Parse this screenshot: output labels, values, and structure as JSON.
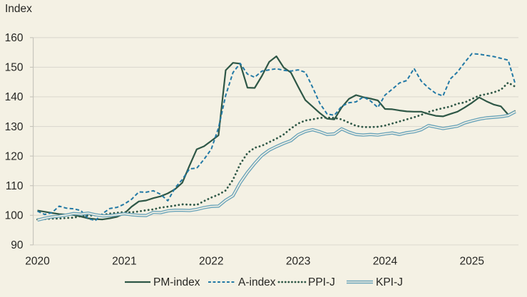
{
  "chart_data": {
    "type": "line",
    "title": "Index",
    "x_start": "2020-01",
    "x_end": "2025-07",
    "x_frequency": "monthly",
    "xtick_labels": [
      "2020",
      "2021",
      "2022",
      "2023",
      "2024",
      "2025"
    ],
    "ytick_labels": [
      "90",
      "100",
      "110",
      "120",
      "130",
      "140",
      "150",
      "160"
    ],
    "ylim": [
      90,
      160
    ],
    "grid": "horizontal",
    "legend_position": "bottom-center",
    "background_color": "#f4f1e4",
    "gridline_color": "#dcd9cf",
    "axis_color": "#c5c3ba",
    "text_color": "#262623",
    "series": [
      {
        "name": "PM-index",
        "style": "solid",
        "color": "#2e5746",
        "values": [
          101.6,
          101.2,
          100.8,
          100.4,
          100.3,
          100.1,
          99.6,
          99.0,
          98.7,
          98.6,
          99.0,
          99.5,
          100.6,
          102.9,
          104.7,
          105.0,
          105.8,
          106.4,
          107.4,
          108.8,
          111.0,
          116.8,
          122.3,
          123.3,
          125.1,
          127.0,
          149.0,
          151.5,
          151.2,
          143.1,
          143.0,
          147.1,
          151.8,
          153.7,
          149.9,
          148.2,
          143.4,
          138.9,
          136.7,
          134.5,
          132.6,
          132.4,
          136.4,
          139.3,
          140.6,
          139.9,
          139.4,
          138.8,
          135.9,
          135.8,
          135.4,
          135.1,
          135.0,
          135.0,
          134.2,
          133.6,
          133.4,
          134.2,
          135.0,
          136.4,
          138.0,
          139.8,
          138.5,
          137.4,
          136.8,
          134.0,
          135.3
        ]
      },
      {
        "name": "A-index",
        "style": "dashed",
        "color": "#2279a5",
        "values": [
          101.4,
          100.3,
          100.9,
          103.1,
          102.4,
          102.2,
          101.6,
          98.9,
          98.2,
          100.6,
          102.3,
          102.7,
          103.8,
          105.4,
          107.9,
          107.8,
          108.3,
          107.1,
          104.9,
          109.2,
          112.1,
          115.7,
          115.9,
          118.9,
          122.3,
          129.5,
          140.5,
          148.2,
          151.3,
          147.7,
          146.6,
          148.7,
          149.1,
          149.5,
          149.0,
          148.7,
          149.1,
          148.3,
          143.2,
          137.8,
          134.2,
          133.8,
          136.8,
          138.0,
          138.3,
          140.0,
          138.6,
          136.4,
          140.6,
          142.6,
          144.7,
          145.5,
          149.6,
          145.3,
          143.0,
          141.2,
          140.3,
          146.0,
          148.4,
          151.6,
          154.6,
          154.4,
          154.0,
          153.6,
          153.0,
          152.4,
          144.2
        ]
      },
      {
        "name": "PPI-J",
        "style": "dotted",
        "color": "#2e5746",
        "values": [
          98.6,
          98.7,
          98.9,
          98.9,
          99.1,
          99.2,
          99.7,
          99.9,
          100.0,
          100.1,
          100.6,
          100.9,
          101.1,
          101.0,
          101.3,
          101.7,
          102.0,
          102.6,
          102.9,
          103.3,
          103.7,
          103.6,
          103.5,
          104.8,
          106.0,
          107.0,
          108.4,
          112.0,
          117.3,
          121.0,
          122.8,
          123.5,
          124.7,
          125.9,
          127.3,
          129.3,
          131.0,
          132.0,
          132.4,
          132.9,
          133.0,
          132.9,
          132.4,
          131.3,
          130.2,
          129.8,
          129.8,
          129.9,
          130.3,
          131.0,
          131.7,
          132.4,
          133.1,
          133.9,
          134.9,
          135.6,
          136.2,
          136.7,
          137.7,
          138.1,
          139.3,
          140.4,
          140.9,
          141.5,
          142.4,
          144.8,
          143.4
        ]
      },
      {
        "name": "KPI-J",
        "style": "double",
        "color": "#69a3b9",
        "values": [
          98.4,
          99.0,
          99.45,
          99.7,
          100.1,
          100.6,
          100.4,
          100.75,
          100.2,
          99.8,
          99.9,
          100.2,
          100.5,
          100.2,
          100.0,
          99.9,
          101.0,
          100.9,
          101.5,
          101.7,
          101.7,
          101.6,
          102.0,
          102.6,
          103.0,
          103.1,
          105.1,
          106.6,
          111.0,
          114.5,
          117.5,
          120.2,
          122.0,
          123.2,
          124.3,
          125.2,
          127.2,
          128.3,
          128.9,
          128.2,
          127.3,
          127.5,
          129.2,
          128.1,
          127.3,
          127.1,
          127.3,
          127.1,
          127.5,
          127.8,
          127.3,
          127.9,
          128.2,
          128.9,
          130.3,
          129.8,
          129.3,
          129.7,
          130.1,
          131.2,
          131.9,
          132.5,
          132.9,
          133.1,
          133.3,
          133.7,
          135.0
        ]
      }
    ]
  }
}
